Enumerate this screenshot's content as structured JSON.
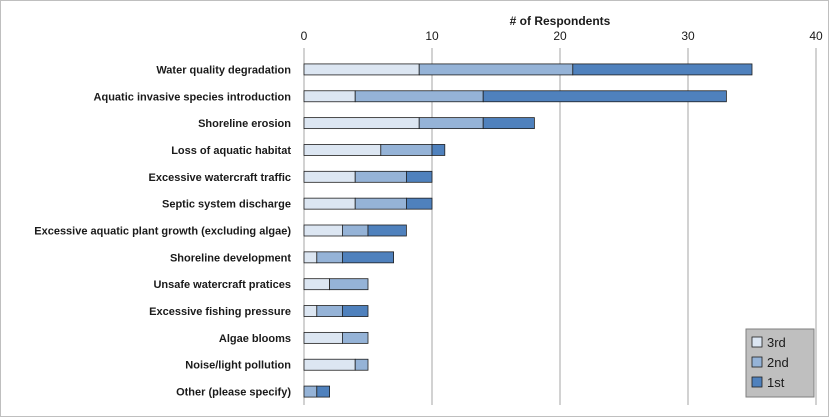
{
  "chart_data": {
    "type": "bar",
    "orientation": "horizontal",
    "stacked": true,
    "xlabel": "# of Respondents",
    "xlim": [
      0,
      40
    ],
    "xticks": [
      0,
      10,
      20,
      30,
      40
    ],
    "grid": true,
    "legend_position": "bottom-right",
    "categories": [
      "Water quality degradation",
      "Aquatic invasive species introduction",
      "Shoreline erosion",
      "Loss of aquatic habitat",
      "Excessive watercraft traffic",
      "Septic system discharge",
      "Excessive aquatic plant growth (excluding algae)",
      "Shoreline development",
      "Unsafe watercraft pratices",
      "Excessive fishing pressure",
      "Algae blooms",
      "Noise/light pollution",
      "Other (please specify)"
    ],
    "series": [
      {
        "name": "3rd",
        "color": "#dce6f2",
        "values": [
          9,
          4,
          9,
          6,
          4,
          4,
          3,
          1,
          2,
          1,
          3,
          4,
          0
        ]
      },
      {
        "name": "2nd",
        "color": "#95b3d7",
        "values": [
          12,
          10,
          5,
          4,
          4,
          4,
          2,
          2,
          3,
          2,
          2,
          1,
          1
        ]
      },
      {
        "name": "1st",
        "color": "#4f81bd",
        "values": [
          14,
          19,
          4,
          1,
          2,
          2,
          3,
          4,
          0,
          2,
          0,
          0,
          1
        ]
      }
    ]
  }
}
